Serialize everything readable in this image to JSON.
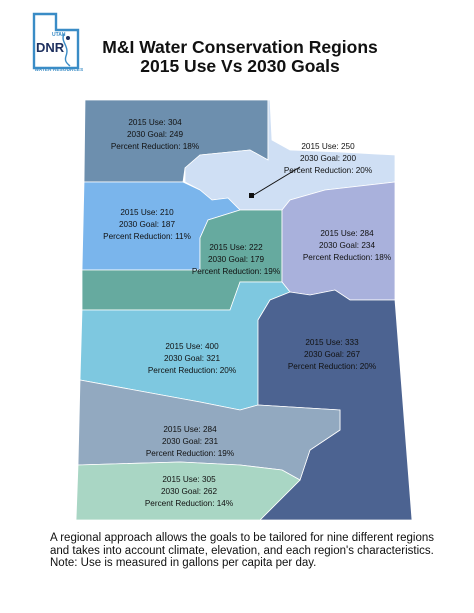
{
  "logo": {
    "top_text": "UTAH",
    "main_text": "DNR",
    "bottom_text": "WATER RESOURCES"
  },
  "title": {
    "line1": "M&I Water Conservation Regions",
    "line2": "2015 Use Vs 2030 Goals"
  },
  "colors": {
    "northwest": "#6d8fae",
    "northeast_small": "#cfdff4",
    "west_central_north": "#7ab5ec",
    "central_teal": "#66aa9f",
    "east_lavender": "#a9b1dc",
    "teal_band": "#66aa9f",
    "central_sky": "#7ec8e0",
    "southeast": "#4c6391",
    "southwest_steel": "#92a9c0",
    "south_mint": "#a9d6c4"
  },
  "regions": [
    {
      "id": "northwest",
      "use": "2015 Use: 304",
      "goal": "2030 Goal: 249",
      "reduction": "Percent Reduction: 18%"
    },
    {
      "id": "northeast-small",
      "use": "2015 Use: 250",
      "goal": "2030 Goal: 200",
      "reduction": "Percent Reduction: 20%"
    },
    {
      "id": "west-central-north",
      "use": "2015 Use: 210",
      "goal": "2030 Goal: 187",
      "reduction": "Percent Reduction: 11%"
    },
    {
      "id": "central-teal",
      "use": "2015 Use: 222",
      "goal": "2030 Goal: 179",
      "reduction": "Percent Reduction: 19%"
    },
    {
      "id": "east-lavender",
      "use": "2015 Use: 284",
      "goal": "2030 Goal: 234",
      "reduction": "Percent Reduction: 18%"
    },
    {
      "id": "central-sky",
      "use": "2015 Use: 400",
      "goal": "2030 Goal: 321",
      "reduction": "Percent Reduction: 20%"
    },
    {
      "id": "southeast",
      "use": "2015 Use: 333",
      "goal": "2030 Goal: 267",
      "reduction": "Percent Reduction: 20%"
    },
    {
      "id": "southwest-steel",
      "use": "2015 Use: 284",
      "goal": "2030 Goal: 231",
      "reduction": "Percent Reduction: 19%"
    },
    {
      "id": "south-mint",
      "use": "2015 Use: 305",
      "goal": "2030 Goal: 262",
      "reduction": "Percent Reduction: 14%"
    }
  ],
  "footnote": {
    "line1": "A regional approach allows the goals to be tailored for nine different regions",
    "line2": "and takes into account climate, elevation, and each region's characteristics.",
    "line3": "Note:  Use is measured in gallons per capita per day."
  }
}
